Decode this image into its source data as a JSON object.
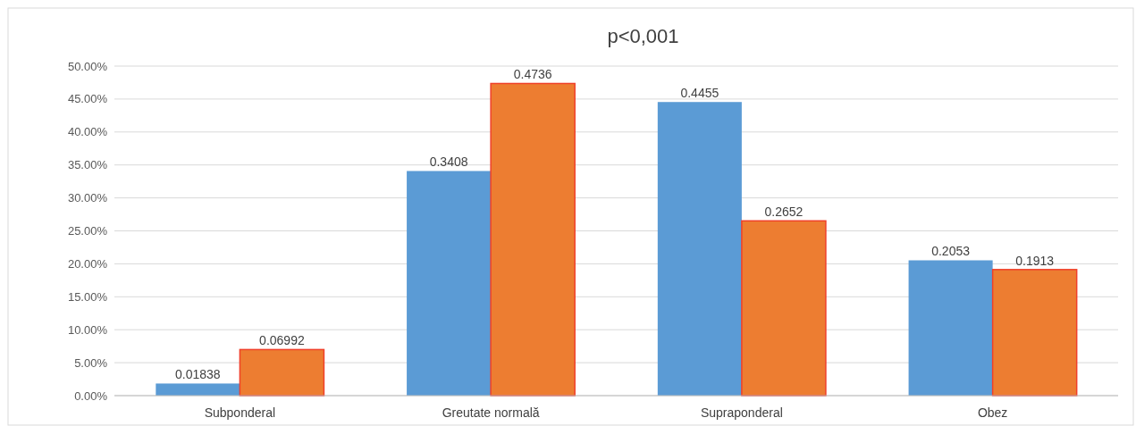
{
  "chart_data": {
    "type": "bar",
    "title": "p<0,001",
    "categories": [
      "Subponderal",
      "Greutate normală",
      "Supraponderal",
      "Obez"
    ],
    "series": [
      {
        "color": "#5b9bd5",
        "values": [
          0.01838,
          0.3408,
          0.4455,
          0.2053
        ]
      },
      {
        "color": "#ed7d31",
        "values": [
          0.06992,
          0.4736,
          0.2652,
          0.1913
        ]
      }
    ],
    "ylim": [
      0,
      0.5
    ],
    "yticks": [
      {
        "value": 0,
        "label": "0.00%"
      },
      {
        "value": 0.05,
        "label": "5.00%"
      },
      {
        "value": 0.1,
        "label": "10.00%"
      },
      {
        "value": 0.15,
        "label": "15.00%"
      },
      {
        "value": 0.2,
        "label": "20.00%"
      },
      {
        "value": 0.25,
        "label": "25.00%"
      },
      {
        "value": 0.3,
        "label": "30.00%"
      },
      {
        "value": 0.35,
        "label": "35.00%"
      },
      {
        "value": 0.4,
        "label": "40.00%"
      },
      {
        "value": 0.45,
        "label": "45.00%"
      },
      {
        "value": 0.5,
        "label": "50.00%"
      }
    ],
    "grid": true,
    "data_labels": true
  }
}
